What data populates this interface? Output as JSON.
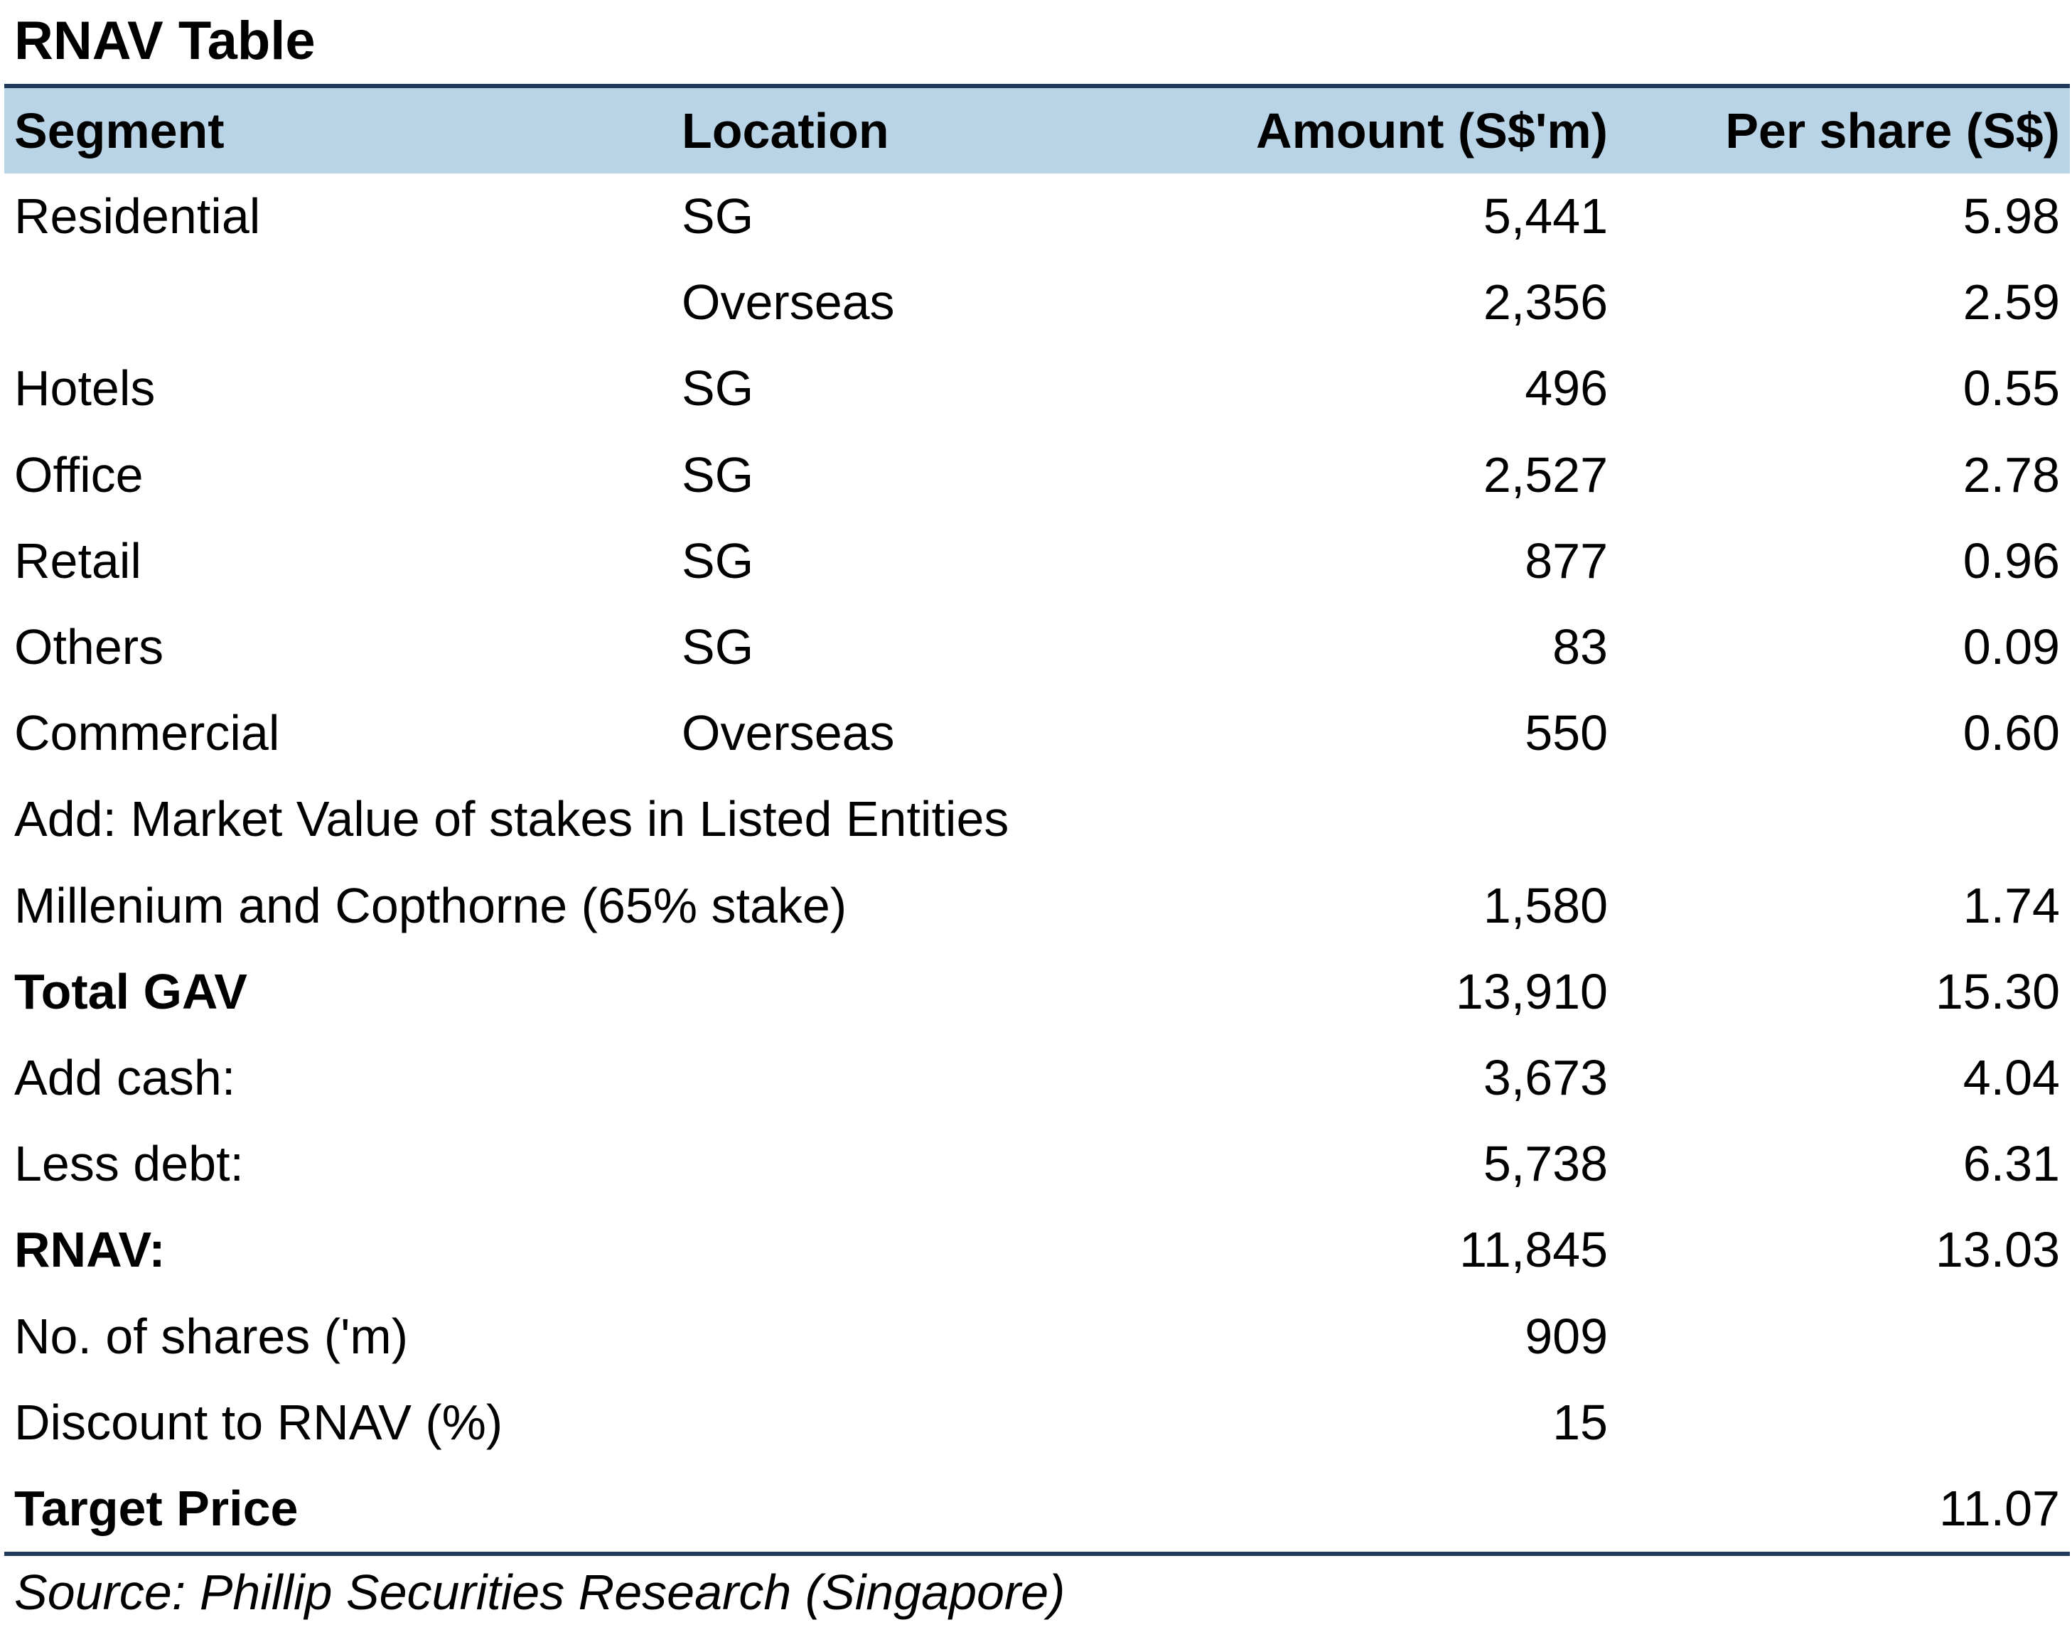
{
  "title": "RNAV Table",
  "table": {
    "headers": {
      "segment": "Segment",
      "location": "Location",
      "amount": "Amount (S$'m)",
      "per_share": "Per share (S$)"
    },
    "rows": [
      {
        "segment": "Residential",
        "location": "SG",
        "amount": "5,441",
        "per_share": "5.98"
      },
      {
        "segment": "",
        "location": "Overseas",
        "amount": "2,356",
        "per_share": "2.59"
      },
      {
        "segment": "Hotels",
        "location": "SG",
        "amount": "496",
        "per_share": "0.55"
      },
      {
        "segment": "Office",
        "location": "SG",
        "amount": "2,527",
        "per_share": "2.78"
      },
      {
        "segment": "Retail",
        "location": "SG",
        "amount": "877",
        "per_share": "0.96"
      },
      {
        "segment": "Others",
        "location": "SG",
        "amount": "83",
        "per_share": "0.09"
      },
      {
        "segment": "Commercial",
        "location": "Overseas",
        "amount": "550",
        "per_share": "0.60"
      },
      {
        "segment": "Add: Market Value of stakes in Listed Entities",
        "location": "",
        "amount": "",
        "per_share": ""
      },
      {
        "segment": "Millenium and Copthorne (65% stake)",
        "location": "",
        "amount": "1,580",
        "per_share": "1.74"
      },
      {
        "segment": "Total GAV",
        "location": "",
        "amount": "13,910",
        "per_share": "15.30"
      },
      {
        "segment": "Add cash:",
        "location": "",
        "amount": "3,673",
        "per_share": "4.04"
      },
      {
        "segment": "Less debt:",
        "location": "",
        "amount": "5,738",
        "per_share": "6.31"
      },
      {
        "segment": "RNAV:",
        "location": "",
        "amount": "11,845",
        "per_share": "13.03"
      },
      {
        "segment": "No. of shares ('m)",
        "location": "",
        "amount": "909",
        "per_share": ""
      },
      {
        "segment": "Discount to RNAV (%)",
        "location": "",
        "amount": "15",
        "per_share": ""
      },
      {
        "segment": "Target Price",
        "location": "",
        "amount": "",
        "per_share": "11.07"
      }
    ]
  },
  "source": "Source: Phillip Securities Research (Singapore)",
  "colors": {
    "header_bg": "#b9d4e6",
    "rule": "#1f3a5a"
  }
}
